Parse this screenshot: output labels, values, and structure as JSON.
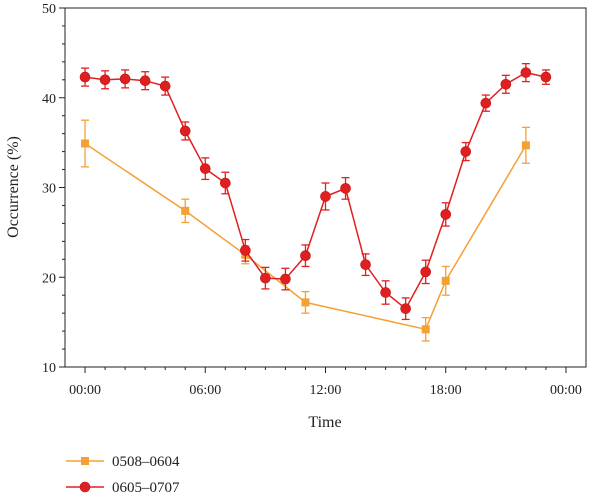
{
  "chart_data": {
    "type": "line",
    "xlabel": "Time",
    "ylabel": "Occurrence (%)",
    "x_ticks": [
      "00:00",
      "06:00",
      "12:00",
      "18:00",
      "00:00"
    ],
    "xlim_hours": [
      -1,
      25
    ],
    "ylim": [
      10,
      50
    ],
    "y_major_ticks": [
      10,
      20,
      30,
      40,
      50
    ],
    "y_minor_step": 2,
    "legend_position": "bottom-left",
    "series": [
      {
        "name": "0508–0604",
        "color": "#f5a033",
        "marker": "square",
        "points": [
          {
            "hour": 0,
            "y": 34.9,
            "err": 2.6
          },
          {
            "hour": 5,
            "y": 27.4,
            "err": 1.3
          },
          {
            "hour": 8,
            "y": 22.5,
            "err": 1.0
          },
          {
            "hour": 11,
            "y": 17.2,
            "err": 1.2
          },
          {
            "hour": 17,
            "y": 14.2,
            "err": 1.3
          },
          {
            "hour": 18,
            "y": 19.6,
            "err": 1.6
          },
          {
            "hour": 22,
            "y": 34.7,
            "err": 2.0
          }
        ]
      },
      {
        "name": "0605–0707",
        "color": "#e02020",
        "marker": "circle",
        "points": [
          {
            "hour": 0,
            "y": 42.3,
            "err": 1.0
          },
          {
            "hour": 1,
            "y": 42.0,
            "err": 1.0
          },
          {
            "hour": 2,
            "y": 42.1,
            "err": 1.0
          },
          {
            "hour": 3,
            "y": 41.9,
            "err": 1.0
          },
          {
            "hour": 4,
            "y": 41.3,
            "err": 1.0
          },
          {
            "hour": 5,
            "y": 36.3,
            "err": 1.0
          },
          {
            "hour": 6,
            "y": 32.1,
            "err": 1.2
          },
          {
            "hour": 7,
            "y": 30.5,
            "err": 1.2
          },
          {
            "hour": 8,
            "y": 23.0,
            "err": 1.2
          },
          {
            "hour": 9,
            "y": 19.9,
            "err": 1.2
          },
          {
            "hour": 10,
            "y": 19.8,
            "err": 1.2
          },
          {
            "hour": 11,
            "y": 22.4,
            "err": 1.2
          },
          {
            "hour": 12,
            "y": 29.0,
            "err": 1.5
          },
          {
            "hour": 13,
            "y": 29.9,
            "err": 1.2
          },
          {
            "hour": 14,
            "y": 21.4,
            "err": 1.2
          },
          {
            "hour": 15,
            "y": 18.3,
            "err": 1.3
          },
          {
            "hour": 16,
            "y": 16.5,
            "err": 1.2
          },
          {
            "hour": 17,
            "y": 20.6,
            "err": 1.3
          },
          {
            "hour": 18,
            "y": 27.0,
            "err": 1.3
          },
          {
            "hour": 19,
            "y": 34.0,
            "err": 1.0
          },
          {
            "hour": 20,
            "y": 39.4,
            "err": 0.9
          },
          {
            "hour": 21,
            "y": 41.5,
            "err": 1.0
          },
          {
            "hour": 22,
            "y": 42.8,
            "err": 1.0
          },
          {
            "hour": 23,
            "y": 42.3,
            "err": 0.8
          }
        ]
      }
    ]
  }
}
